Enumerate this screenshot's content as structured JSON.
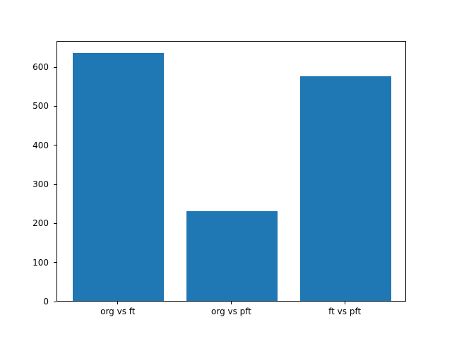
{
  "chart_data": {
    "type": "bar",
    "title": "",
    "xlabel": "",
    "ylabel": "",
    "categories": [
      "org vs ft",
      "org vs pft",
      "ft vs pft"
    ],
    "values": [
      635,
      230,
      575
    ],
    "ylim": [
      0,
      667
    ],
    "yticks": [
      0,
      100,
      200,
      300,
      400,
      500,
      600
    ],
    "bar_color": "#1f77b4",
    "bar_width_fraction": 0.26,
    "bar_center_fractions": [
      0.1754,
      0.5,
      0.8246
    ],
    "grid": false,
    "legend_position": "none",
    "spine_color": "#000000",
    "background_color": "#ffffff"
  }
}
